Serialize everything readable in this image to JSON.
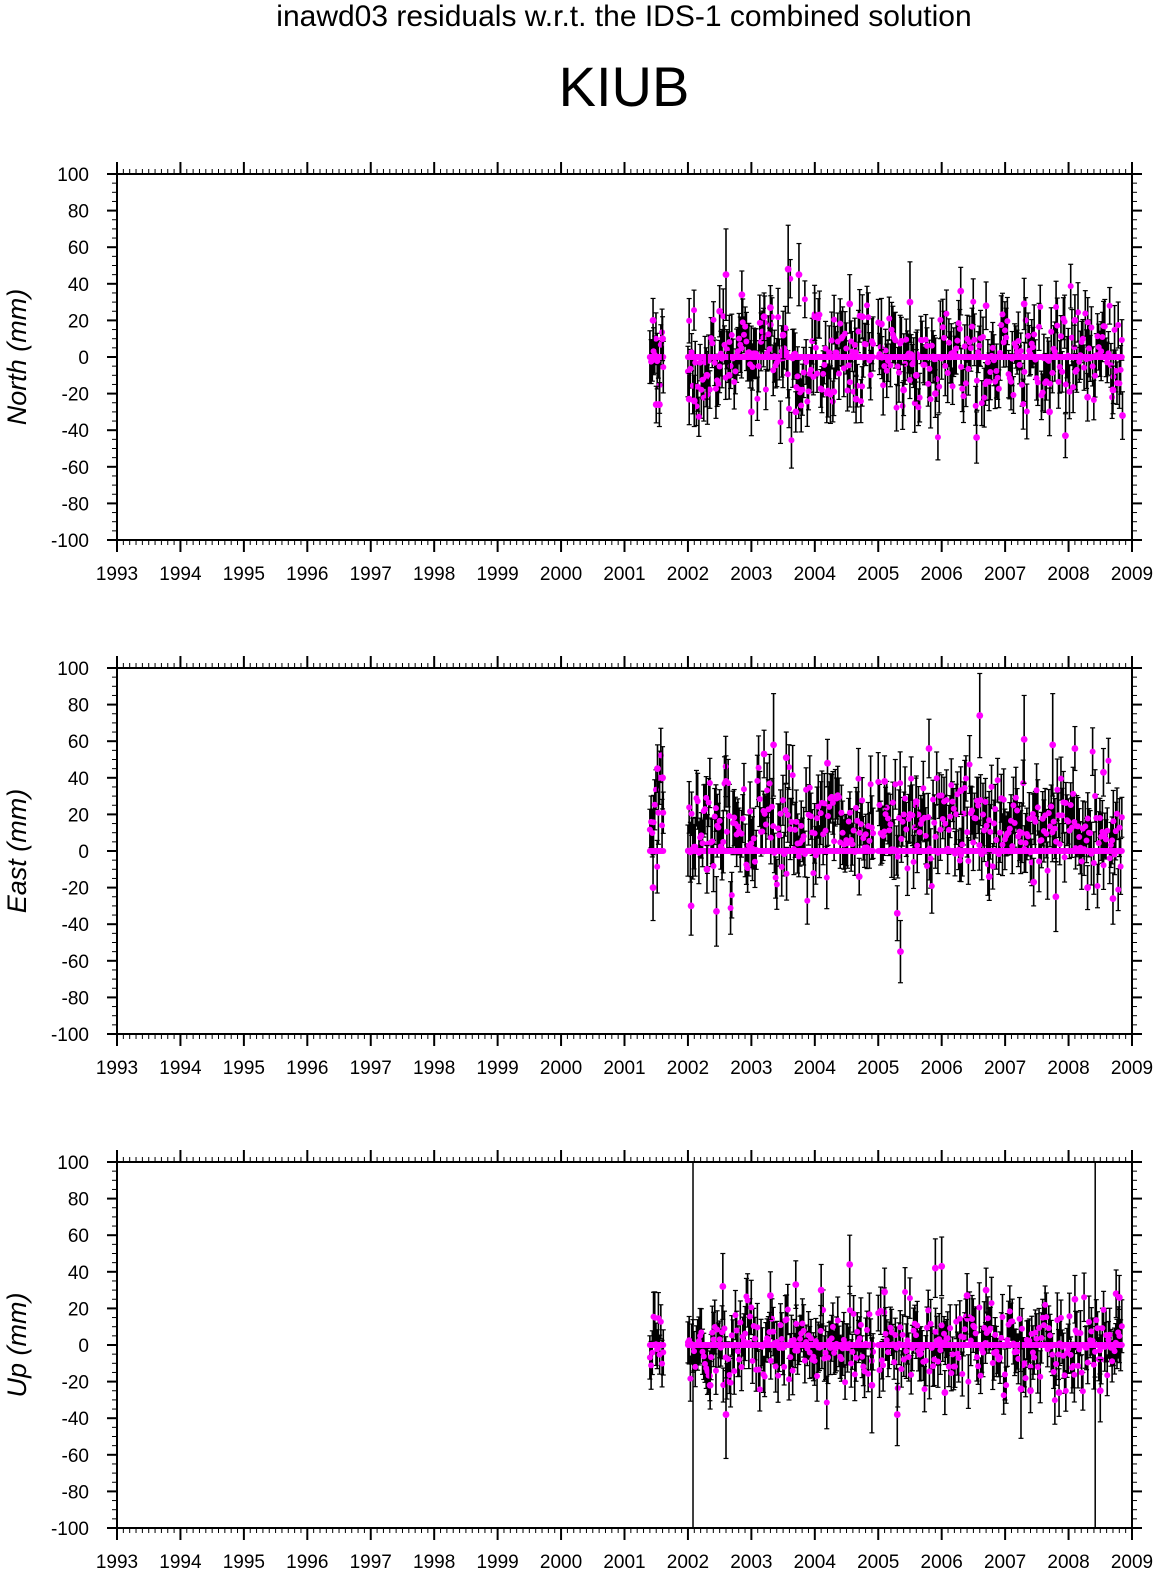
{
  "figure": {
    "title": "inawd03 residuals w.r.t. the IDS-1 combined solution",
    "station": "KIUB",
    "marker_color": "#ff00ff",
    "errorbar_color": "#000000"
  },
  "chart_data": [
    {
      "type": "scatter",
      "panel": "north",
      "ylabel": "North (mm)",
      "xlim": [
        1993,
        2009
      ],
      "ylim": [
        -100,
        100
      ],
      "x_ticks": [
        "1993",
        "1994",
        "1995",
        "1996",
        "1997",
        "1998",
        "1999",
        "2000",
        "2001",
        "2002",
        "2003",
        "2004",
        "2005",
        "2006",
        "2007",
        "2008",
        "2009"
      ],
      "y_ticks": [
        "100",
        "80",
        "60",
        "40",
        "20",
        "0",
        "-20",
        "-40",
        "-60",
        "-80",
        "-100"
      ],
      "vlines": [],
      "segments": [
        [
          2001.4,
          2001.62
        ],
        [
          2002.0,
          2004.92
        ],
        [
          2005.0,
          2008.85
        ]
      ],
      "scatter_sd": 13,
      "errorbar_sigma": 13,
      "series": [
        {
          "x": [
            2001.45,
            2001.5,
            2001.55,
            2001.6,
            2002.02,
            2002.1,
            2002.3,
            2002.5,
            2002.6,
            2002.65,
            2002.85,
            2003.0,
            2003.2,
            2003.3,
            2003.5,
            2003.58,
            2003.7,
            2003.75,
            2004.0,
            2004.3,
            2004.55,
            2004.65,
            2004.75,
            2005.05,
            2005.4,
            2005.5,
            2005.6,
            2005.9,
            2006.3,
            2006.55,
            2006.7,
            2007.3,
            2007.7,
            2007.95,
            2008.1,
            2008.3,
            2008.7,
            2008.85
          ],
          "y": [
            20,
            -26,
            -26,
            10,
            -23,
            -24,
            -10,
            25,
            45,
            -10,
            34,
            -30,
            22,
            27,
            12,
            48,
            -30,
            45,
            22,
            -19,
            29,
            -23,
            22,
            18,
            -18,
            30,
            -10,
            -20,
            36,
            -44,
            28,
            29,
            -30,
            -43,
            20,
            -22,
            -18,
            -32
          ],
          "err": [
            12,
            10,
            12,
            12,
            14,
            14,
            13,
            14,
            25,
            13,
            13,
            13,
            13,
            12,
            13,
            24,
            11,
            17,
            13,
            13,
            16,
            13,
            12,
            14,
            14,
            22,
            14,
            13,
            13,
            14,
            13,
            14,
            13,
            12,
            14,
            13,
            13,
            13
          ]
        }
      ]
    },
    {
      "type": "scatter",
      "panel": "east",
      "ylabel": "East (mm)",
      "xlim": [
        1993,
        2009
      ],
      "ylim": [
        -100,
        100
      ],
      "x_ticks": [
        "1993",
        "1994",
        "1995",
        "1996",
        "1997",
        "1998",
        "1999",
        "2000",
        "2001",
        "2002",
        "2003",
        "2004",
        "2005",
        "2006",
        "2007",
        "2008",
        "2009"
      ],
      "y_ticks": [
        "100",
        "80",
        "60",
        "40",
        "20",
        "0",
        "-20",
        "-40",
        "-60",
        "-80",
        "-100"
      ],
      "vlines": [],
      "segments": [
        [
          2001.4,
          2001.62
        ],
        [
          2002.0,
          2004.92
        ],
        [
          2005.0,
          2008.85
        ]
      ],
      "scatter_center": 14,
      "scatter_sd": 15,
      "errorbar_sigma": 14,
      "series": [
        {
          "x": [
            2001.45,
            2001.52,
            2001.6,
            2002.05,
            2002.3,
            2002.45,
            2002.6,
            2003.2,
            2003.35,
            2003.55,
            2004.2,
            2004.7,
            2005.1,
            2005.3,
            2005.35,
            2005.6,
            2005.8,
            2006.3,
            2006.6,
            2006.75,
            2007.3,
            2007.45,
            2007.75,
            2007.8,
            2008.1,
            2008.3,
            2008.55,
            2008.7
          ],
          "y": [
            -20,
            45,
            40,
            -30,
            -10,
            -33,
            38,
            53,
            58,
            51,
            48,
            -14,
            38,
            -34,
            -55,
            27,
            56,
            33,
            74,
            -14,
            61,
            -17,
            58,
            -25,
            56,
            -20,
            43,
            -26
          ],
          "err": [
            18,
            13,
            17,
            16,
            13,
            19,
            14,
            13,
            28,
            14,
            13,
            10,
            14,
            15,
            17,
            14,
            16,
            13,
            23,
            13,
            24,
            13,
            28,
            19,
            12,
            12,
            13,
            14
          ]
        }
      ]
    },
    {
      "type": "scatter",
      "panel": "up",
      "ylabel": "Up (mm)",
      "xlim": [
        1993,
        2009
      ],
      "ylim": [
        -100,
        100
      ],
      "x_ticks": [
        "1993",
        "1994",
        "1995",
        "1996",
        "1997",
        "1998",
        "1999",
        "2000",
        "2001",
        "2002",
        "2003",
        "2004",
        "2005",
        "2006",
        "2007",
        "2008",
        "2009"
      ],
      "y_ticks": [
        "100",
        "80",
        "60",
        "40",
        "20",
        "0",
        "-20",
        "-40",
        "-60",
        "-80",
        "-100"
      ],
      "vlines": [
        2002.08,
        2008.42
      ],
      "segments": [
        [
          2001.4,
          2001.62
        ],
        [
          2002.0,
          2004.92
        ],
        [
          2005.0,
          2008.85
        ]
      ],
      "scatter_sd": 11,
      "errorbar_sigma": 12,
      "series": [
        {
          "x": [
            2002.35,
            2002.55,
            2002.6,
            2003.3,
            2003.7,
            2004.1,
            2004.55,
            2004.9,
            2005.1,
            2005.3,
            2005.9,
            2006.0,
            2006.05,
            2006.4,
            2006.7,
            2007.25,
            2007.4,
            2007.85,
            2008.1,
            2008.5,
            2008.75,
            2008.8
          ],
          "y": [
            -22,
            32,
            -38,
            27,
            33,
            30,
            44,
            -22,
            29,
            -38,
            42,
            43,
            -26,
            27,
            30,
            -24,
            -25,
            -26,
            25,
            -25,
            28,
            26
          ],
          "err": [
            13,
            18,
            24,
            13,
            13,
            14,
            16,
            26,
            13,
            17,
            16,
            16,
            12,
            12,
            12,
            27,
            12,
            13,
            13,
            17,
            13,
            12
          ]
        }
      ]
    }
  ]
}
